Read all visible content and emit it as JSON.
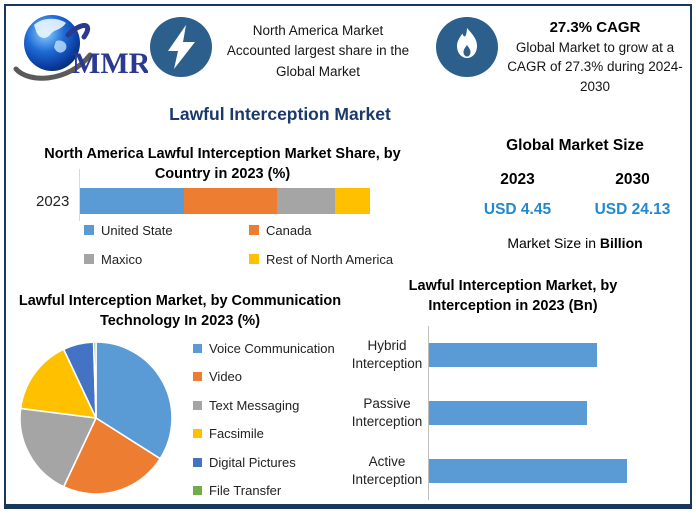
{
  "brand": {
    "logo_text": "MMR"
  },
  "colors": {
    "frame_border": "#17375D",
    "page_title": "#1B3A6B",
    "icon_circle": "#2D5F8D",
    "value_blue": "#2189CE",
    "bar_blue": "#5B9BD5"
  },
  "header": {
    "highlight1": {
      "icon": "lightning-icon",
      "line1": "North America Market",
      "line2": "Accounted largest share in the",
      "line3": "Global Market"
    },
    "highlight2": {
      "icon": "flame-icon",
      "title": "27.3% CAGR",
      "line1": "Global Market to grow at a",
      "line2": "CAGR of 27.3% during 2024-",
      "line3": "2030"
    }
  },
  "page_title": "Lawful Interception Market",
  "market_size_panel": {
    "title": "Global Market Size",
    "year_start": "2023",
    "year_end": "2030",
    "value_start": "USD 4.45",
    "value_end": "USD 24.13",
    "caption_prefix": "Market Size in ",
    "caption_bold": "Billion"
  },
  "chart_data": [
    {
      "id": "north-america-country-share",
      "type": "bar",
      "subtype": "stacked-horizontal",
      "title": "North America Lawful Interception Market Share, by Country in 2023 (%)",
      "categories": [
        "2023"
      ],
      "series": [
        {
          "name": "United State",
          "color": "#5B9BD5",
          "values": [
            36
          ]
        },
        {
          "name": "Canada",
          "color": "#ED7D31",
          "values": [
            32
          ]
        },
        {
          "name": "Maxico",
          "color": "#A5A5A5",
          "values": [
            20
          ]
        },
        {
          "name": "Rest of North America",
          "color": "#FFC000",
          "values": [
            12
          ]
        }
      ],
      "unit": "%",
      "legend_position": "bottom",
      "grid": false
    },
    {
      "id": "communication-technology-share",
      "type": "pie",
      "title": "Lawful Interception Market, by Communication Technology In 2023 (%)",
      "slices": [
        {
          "label": "Voice Communication",
          "value": 34,
          "color": "#5B9BD5"
        },
        {
          "label": "Video",
          "value": 23,
          "color": "#ED7D31"
        },
        {
          "label": "Text Messaging",
          "value": 20,
          "color": "#A5A5A5"
        },
        {
          "label": "Facsimile",
          "value": 16,
          "color": "#FFC000"
        },
        {
          "label": "Digital Pictures",
          "value": 6.5,
          "color": "#4472C4"
        },
        {
          "label": "File Transfer",
          "value": 0.5,
          "color": "#70AD47"
        }
      ],
      "unit": "%",
      "legend_position": "right",
      "start_angle": "top",
      "direction": "clockwise"
    },
    {
      "id": "interception-type",
      "type": "bar",
      "subtype": "horizontal",
      "title": "Lawful Interception Market, by Interception  in 2023 (Bn)",
      "categories": [
        "Hybrid Interception",
        "Passive Interception",
        "Active Interception"
      ],
      "values": [
        1.7,
        1.6,
        2.0
      ],
      "xlim": [
        0,
        2.6
      ],
      "bar_color": "#5B9BD5",
      "unit": "Bn",
      "grid": false
    }
  ]
}
